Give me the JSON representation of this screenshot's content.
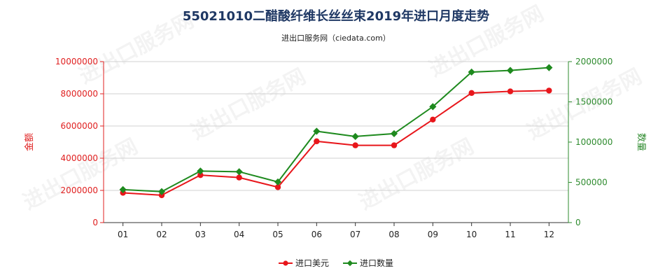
{
  "chart_data": {
    "type": "line",
    "title": "55021010二醋酸纤维长丝丝束2019年进口月度走势",
    "subtitle": "进出口服务网（ciedata.com）",
    "categories": [
      "01",
      "02",
      "03",
      "04",
      "05",
      "06",
      "07",
      "08",
      "09",
      "10",
      "11",
      "12"
    ],
    "y_left": {
      "label": "金额",
      "range": [
        0,
        10000000
      ],
      "ticks": [
        "0",
        "2000000",
        "4000000",
        "6000000",
        "8000000",
        "10000000"
      ],
      "color": "#e02020"
    },
    "y_right": {
      "label": "数量",
      "range": [
        0,
        2000000
      ],
      "ticks": [
        "0",
        "500000",
        "1000000",
        "1500000",
        "2000000"
      ],
      "color": "#2e8b2e"
    },
    "series": [
      {
        "name": "进口美元",
        "axis": "left",
        "color": "#e8161b",
        "values": [
          1850000,
          1700000,
          2950000,
          2800000,
          2200000,
          5050000,
          4800000,
          4800000,
          6400000,
          8050000,
          8150000,
          8200000
        ]
      },
      {
        "name": "进口数量",
        "axis": "right",
        "color": "#1e8a1e",
        "values": [
          410000,
          385000,
          640000,
          632000,
          505000,
          1135000,
          1070000,
          1105000,
          1440000,
          1870000,
          1890000,
          1925000
        ]
      }
    ],
    "grid": "horizontal",
    "legend_position": "bottom",
    "watermark": "进出口服务网"
  }
}
